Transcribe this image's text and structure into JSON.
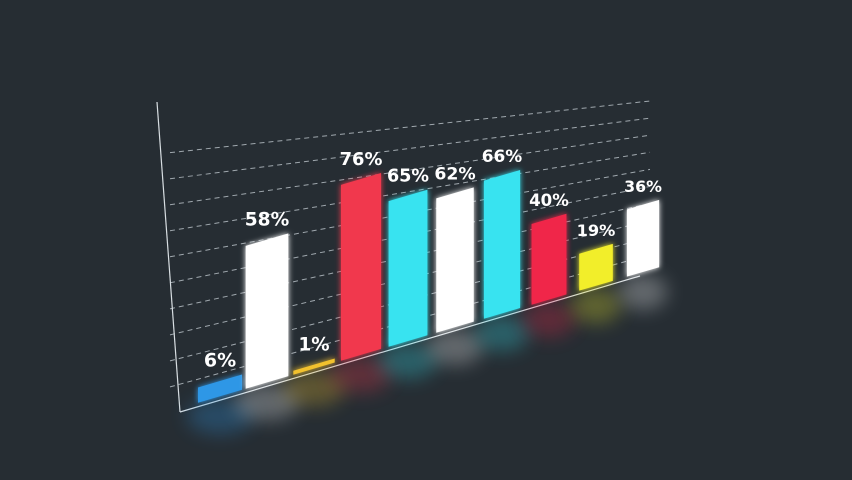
{
  "chart_data": {
    "type": "bar",
    "labels": [
      "6%",
      "58%",
      "1%",
      "76%",
      "65%",
      "62%",
      "66%",
      "40%",
      "19%",
      "36%"
    ],
    "values": [
      6,
      58,
      1,
      76,
      65,
      62,
      66,
      40,
      19,
      36
    ],
    "ylim": [
      0,
      100
    ],
    "grid": true,
    "colors": [
      "#2f97e6",
      "#ffffff",
      "#f2c12e",
      "#f1394e",
      "#38e3f0",
      "#ffffff",
      "#38e3f0",
      "#f0274a",
      "#f2ee2c",
      "#ffffff"
    ],
    "background": "#262d33"
  }
}
